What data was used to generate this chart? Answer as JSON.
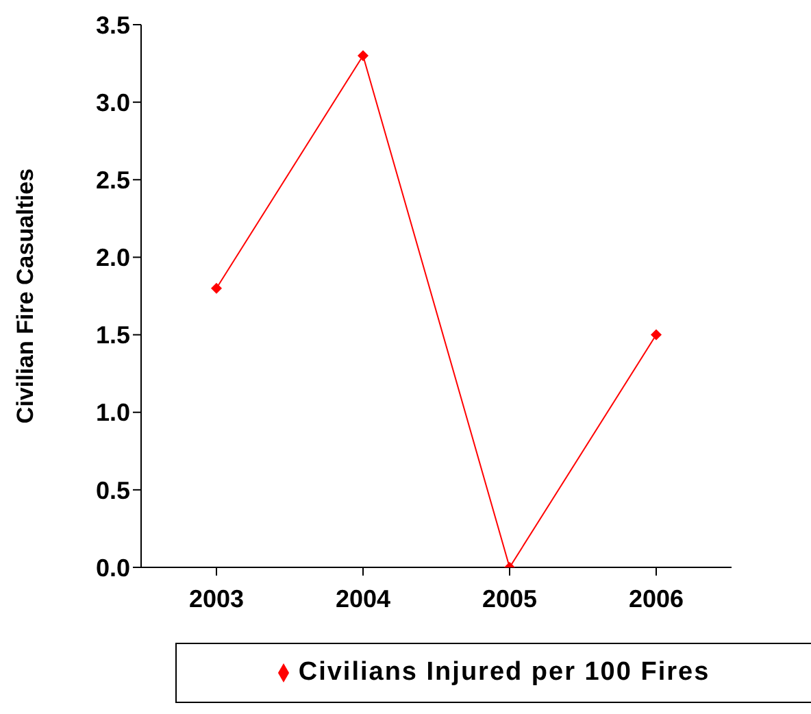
{
  "chart_data": {
    "type": "line",
    "ylabel": "Civilian Fire Casualties",
    "categories": [
      "2003",
      "2004",
      "2005",
      "2006"
    ],
    "series": [
      {
        "name": "Civilians Injured per 100 Fires",
        "color": "#ff0000",
        "values": [
          1.8,
          3.3,
          0.0,
          1.5
        ]
      }
    ],
    "ylim": [
      0,
      3.5
    ],
    "yticks": [
      {
        "value": 0,
        "label": "0.0"
      },
      0.5,
      {
        "value": 1,
        "label": "1.0"
      },
      1.5,
      {
        "value": 2,
        "label": "2.0"
      },
      2.5,
      {
        "value": 3,
        "label": "3.0"
      },
      3.5
    ],
    "grid": false,
    "legend": "bottom",
    "marker": "diamond",
    "line_style": "solid"
  }
}
